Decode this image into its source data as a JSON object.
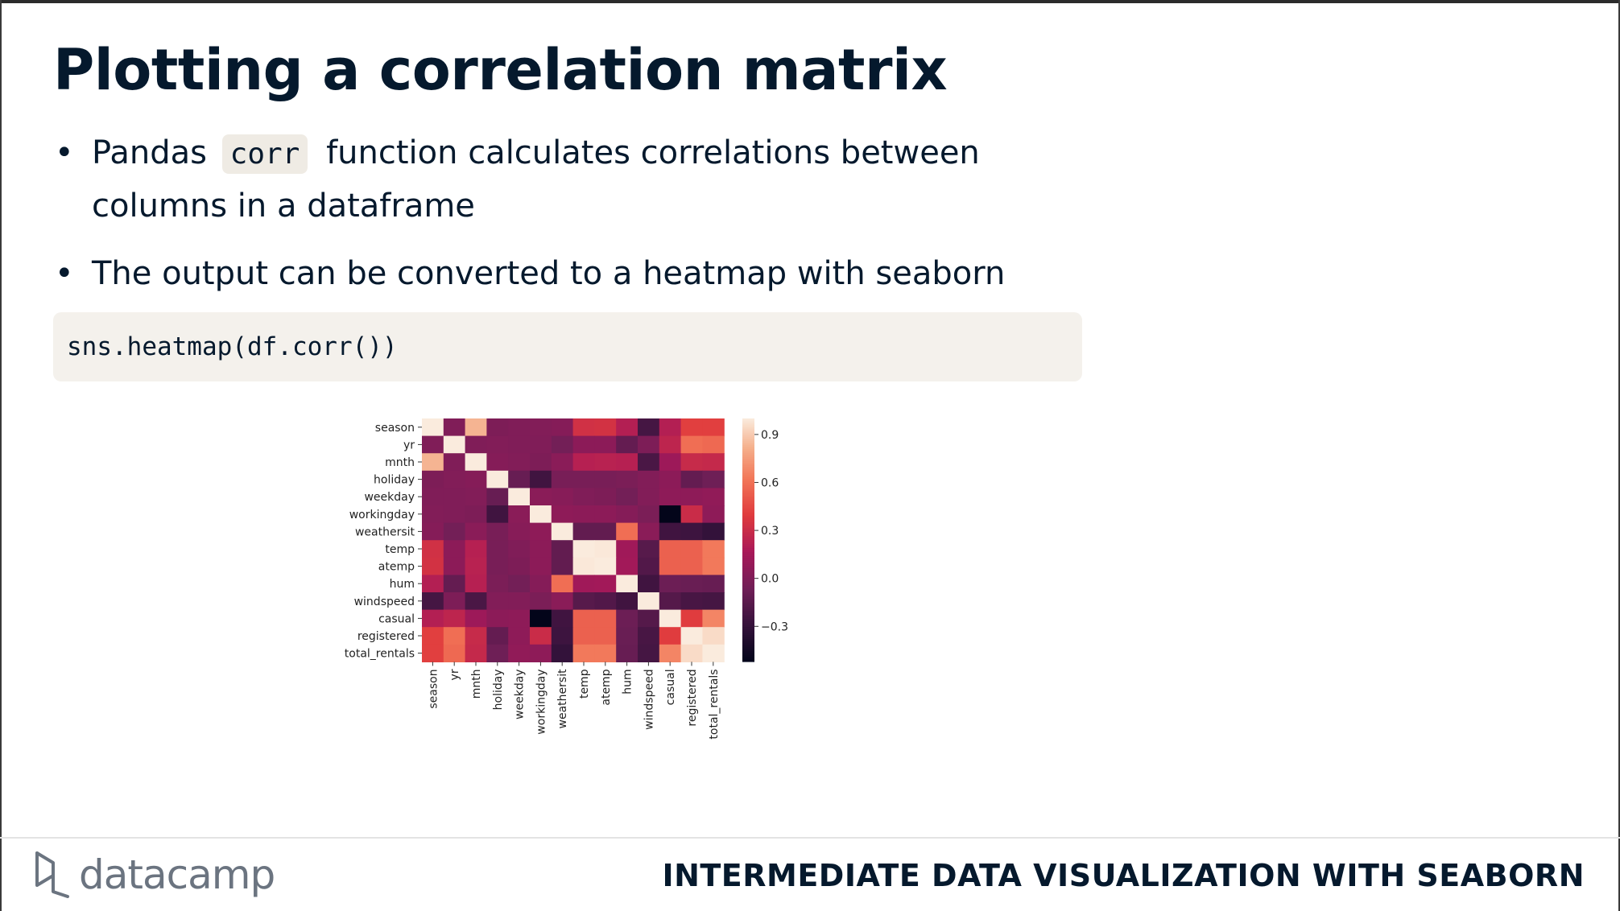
{
  "slide": {
    "title": "Plotting a correlation matrix",
    "bullets": [
      {
        "before": "Pandas",
        "code": "corr",
        "after": "function calculates correlations between columns in a dataframe"
      },
      {
        "text": "The output can be converted to a heatmap with seaborn"
      }
    ],
    "bullet_symbol": "•",
    "code_block": "sns.heatmap(df.corr())"
  },
  "footer": {
    "logo_text": "datacamp",
    "course_title": "INTERMEDIATE DATA VISUALIZATION WITH SEABORN"
  },
  "chart_data": {
    "type": "heatmap",
    "title": "",
    "xlabel": "",
    "ylabel": "",
    "rows": [
      "season",
      "yr",
      "mnth",
      "holiday",
      "weekday",
      "workingday",
      "weathersit",
      "temp",
      "atemp",
      "hum",
      "windspeed",
      "casual",
      "registered",
      "total_rentals"
    ],
    "columns": [
      "season",
      "yr",
      "mnth",
      "holiday",
      "weekday",
      "workingday",
      "weathersit",
      "temp",
      "atemp",
      "hum",
      "windspeed",
      "casual",
      "registered",
      "total_rentals"
    ],
    "values": [
      [
        1.0,
        0.0,
        0.83,
        -0.01,
        0.0,
        0.01,
        0.02,
        0.33,
        0.34,
        0.21,
        -0.23,
        0.21,
        0.41,
        0.41
      ],
      [
        0.0,
        1.0,
        0.0,
        0.01,
        0.0,
        0.0,
        -0.05,
        0.05,
        0.05,
        -0.11,
        -0.01,
        0.25,
        0.59,
        0.57
      ],
      [
        0.83,
        0.0,
        1.0,
        0.02,
        0.01,
        -0.01,
        0.04,
        0.22,
        0.23,
        0.22,
        -0.21,
        0.12,
        0.29,
        0.28
      ],
      [
        -0.01,
        0.01,
        0.02,
        1.0,
        -0.1,
        -0.25,
        -0.03,
        -0.03,
        -0.03,
        -0.02,
        0.01,
        0.05,
        -0.11,
        -0.07
      ],
      [
        0.0,
        0.0,
        0.01,
        -0.1,
        1.0,
        0.04,
        0.03,
        0.0,
        -0.01,
        -0.05,
        0.01,
        0.06,
        0.06,
        0.07
      ],
      [
        0.01,
        0.0,
        -0.01,
        -0.25,
        0.04,
        1.0,
        0.06,
        0.05,
        0.05,
        0.02,
        -0.02,
        -0.52,
        0.3,
        0.06
      ],
      [
        0.02,
        -0.05,
        0.04,
        -0.03,
        0.03,
        0.06,
        1.0,
        -0.12,
        -0.12,
        0.59,
        0.04,
        -0.25,
        -0.26,
        -0.3
      ],
      [
        0.33,
        0.05,
        0.22,
        -0.03,
        0.0,
        0.05,
        -0.12,
        1.0,
        0.99,
        0.13,
        -0.16,
        0.54,
        0.54,
        0.63
      ],
      [
        0.34,
        0.05,
        0.23,
        -0.03,
        -0.01,
        0.05,
        -0.12,
        0.99,
        1.0,
        0.14,
        -0.18,
        0.54,
        0.54,
        0.63
      ],
      [
        0.21,
        -0.11,
        0.22,
        -0.02,
        -0.05,
        0.02,
        0.59,
        0.13,
        0.14,
        1.0,
        -0.25,
        -0.08,
        -0.09,
        -0.1
      ],
      [
        -0.23,
        -0.01,
        -0.21,
        0.01,
        0.01,
        -0.02,
        0.04,
        -0.16,
        -0.18,
        -0.25,
        1.0,
        -0.17,
        -0.22,
        -0.23
      ],
      [
        0.21,
        0.25,
        0.12,
        0.05,
        0.06,
        -0.52,
        -0.25,
        0.54,
        0.54,
        -0.08,
        -0.17,
        1.0,
        0.4,
        0.67
      ],
      [
        0.41,
        0.59,
        0.29,
        -0.11,
        0.06,
        0.3,
        -0.26,
        0.54,
        0.54,
        -0.09,
        -0.22,
        0.4,
        1.0,
        0.95
      ],
      [
        0.41,
        0.57,
        0.28,
        -0.07,
        0.07,
        0.06,
        -0.3,
        0.63,
        0.63,
        -0.1,
        -0.23,
        0.67,
        0.95,
        1.0
      ]
    ],
    "colorbar": {
      "min": -0.52,
      "max": 1.0,
      "ticks": [
        0.9,
        0.6,
        0.3,
        0.0,
        -0.3
      ],
      "tick_labels": [
        "0.9",
        "0.6",
        "0.3",
        "0.0",
        "−0.3"
      ]
    },
    "colormap": "rocket",
    "grid": false,
    "legend": "none"
  }
}
